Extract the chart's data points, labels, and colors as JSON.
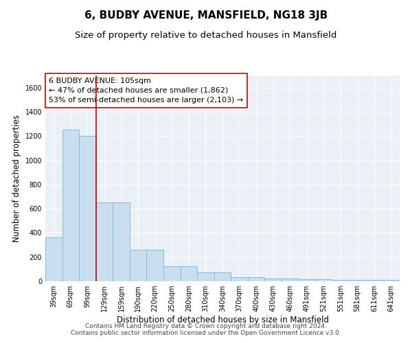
{
  "title": "6, BUDBY AVENUE, MANSFIELD, NG18 3JB",
  "subtitle": "Size of property relative to detached houses in Mansfield",
  "xlabel": "Distribution of detached houses by size in Mansfield",
  "ylabel": "Number of detached properties",
  "categories": [
    "39sqm",
    "69sqm",
    "99sqm",
    "129sqm",
    "159sqm",
    "190sqm",
    "220sqm",
    "250sqm",
    "280sqm",
    "310sqm",
    "340sqm",
    "370sqm",
    "400sqm",
    "430sqm",
    "460sqm",
    "491sqm",
    "521sqm",
    "551sqm",
    "581sqm",
    "611sqm",
    "641sqm"
  ],
  "values": [
    360,
    1250,
    1200,
    650,
    650,
    260,
    260,
    125,
    125,
    75,
    75,
    35,
    35,
    20,
    20,
    15,
    15,
    10,
    10,
    10,
    10
  ],
  "bar_color": "#c9dff0",
  "bar_edge_color": "#8ab8d8",
  "vline_x_index": 2,
  "vline_color": "#cc0000",
  "annotation_text": "6 BUDBY AVENUE: 105sqm\n← 47% of detached houses are smaller (1,862)\n53% of semi-detached houses are larger (2,103) →",
  "annotation_box_color": "white",
  "annotation_box_edge_color": "#cc0000",
  "ylim": [
    0,
    1700
  ],
  "yticks": [
    0,
    200,
    400,
    600,
    800,
    1000,
    1200,
    1400,
    1600
  ],
  "bg_color": "#eaf0f6",
  "footer_text": "Contains HM Land Registry data © Crown copyright and database right 2024.\nContains public sector information licensed under the Open Government Licence v3.0.",
  "title_fontsize": 11,
  "subtitle_fontsize": 9.5,
  "xlabel_fontsize": 8.5,
  "ylabel_fontsize": 8.5,
  "tick_fontsize": 7,
  "annotation_fontsize": 8,
  "footer_fontsize": 6.5
}
